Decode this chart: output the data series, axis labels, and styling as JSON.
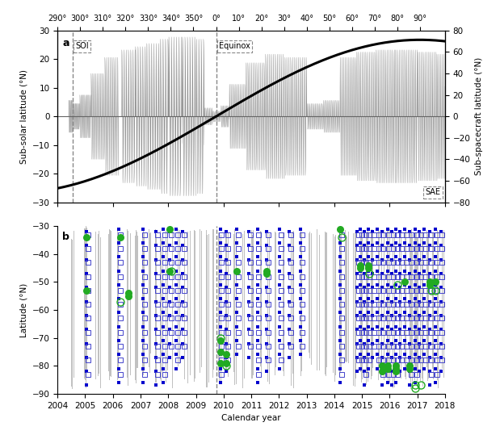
{
  "panel_a": {
    "ylim_left": [
      -30,
      30
    ],
    "ylim_right": [
      -80,
      80
    ],
    "ylabel_left": "Sub-solar latitude (°N)",
    "ylabel_right": "Sub-spacecraft latitude (°N)",
    "solar_longitude_ticks": [
      290,
      300,
      310,
      320,
      330,
      340,
      350,
      0,
      10,
      20,
      30,
      40,
      50,
      60,
      70,
      80,
      90
    ],
    "soi_year": 2004.54,
    "equinox_year": 2009.73,
    "sae_label": "SAE",
    "soi_label": "SOI",
    "equinox_label": "Equinox"
  },
  "panel_b": {
    "ylim": [
      -90,
      -30
    ],
    "ylabel": "Latitude (°N)",
    "xlabel": "Calendar year",
    "equinox_year": 2009.73
  },
  "year_start": 2004.0,
  "year_end": 2018.0,
  "saturn_period": 29.46,
  "saturn_tilt": 26.73,
  "background_color": "#ffffff",
  "dark_gray_fill": "#888888",
  "black_curve_color": "#000000",
  "blue_filled_color": "#0000cd",
  "blue_open_color": "#4444cc",
  "green_filled_color": "#22aa22",
  "green_open_color": "#22aa22"
}
